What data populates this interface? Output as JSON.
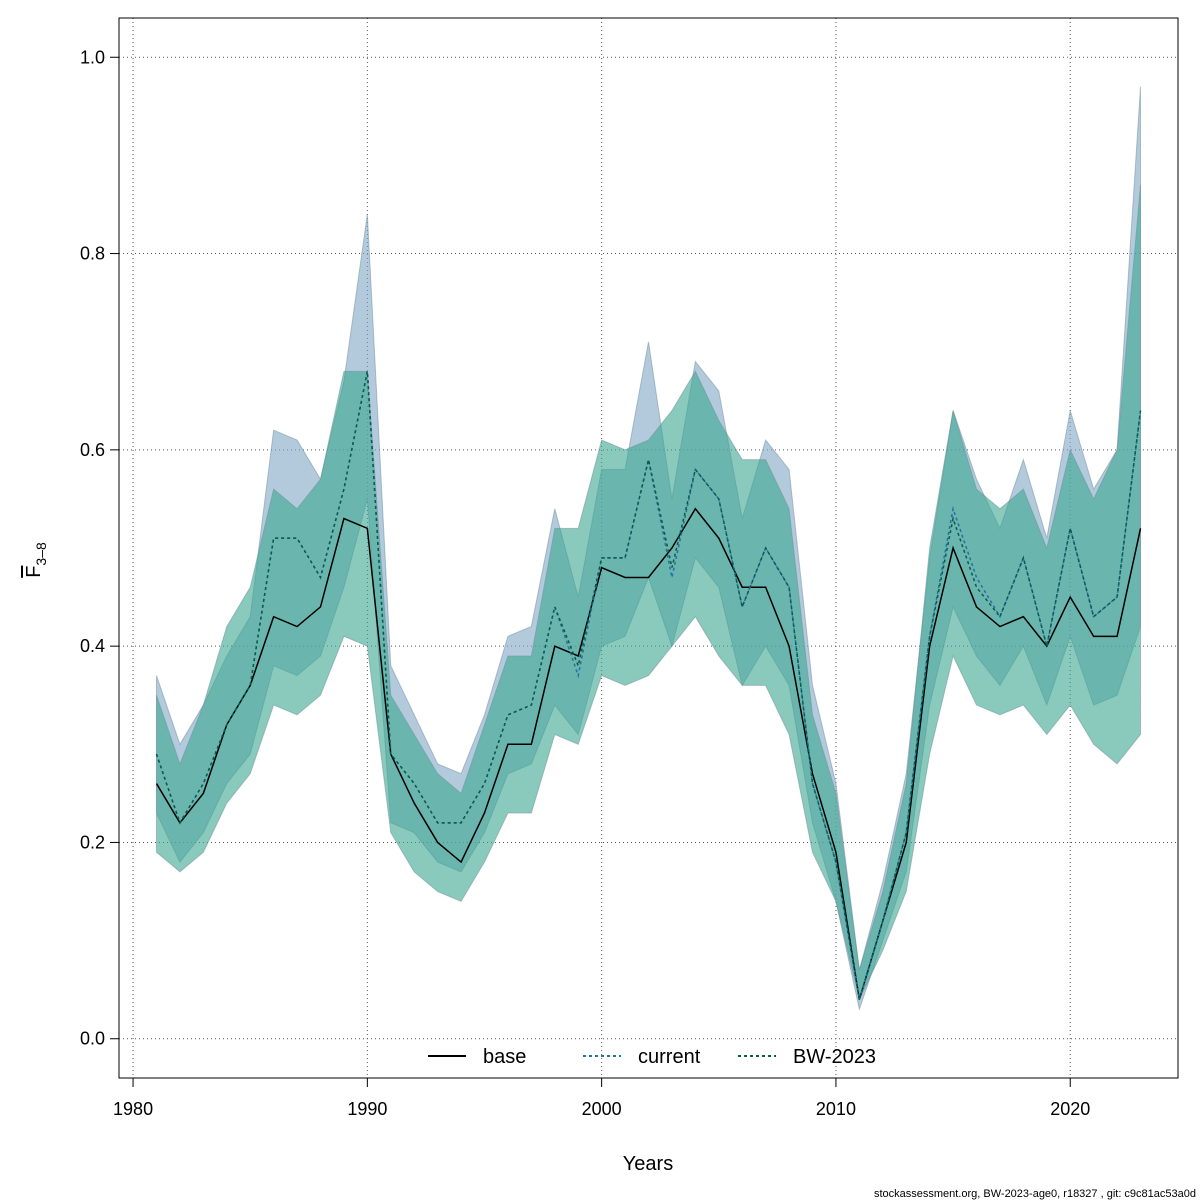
{
  "chart_data": {
    "type": "line",
    "xlabel": "Years",
    "ylabel": "F",
    "ylabel_subscript": "3–8",
    "xlim": [
      1979.4,
      2024.6
    ],
    "ylim": [
      -0.04,
      1.04
    ],
    "xticks": [
      1980,
      1990,
      2000,
      2010,
      2020
    ],
    "yticks": [
      0.0,
      0.2,
      0.4,
      0.6,
      0.8,
      1.0
    ],
    "grid": true,
    "legend_position": "bottom-center",
    "x": [
      1981,
      1982,
      1983,
      1984,
      1985,
      1986,
      1987,
      1988,
      1989,
      1990,
      1991,
      1992,
      1993,
      1994,
      1995,
      1996,
      1997,
      1998,
      1999,
      2000,
      2001,
      2002,
      2003,
      2004,
      2005,
      2006,
      2007,
      2008,
      2009,
      2010,
      2011,
      2012,
      2013,
      2014,
      2015,
      2016,
      2017,
      2018,
      2019,
      2020,
      2021,
      2022,
      2023
    ],
    "bands": [
      {
        "color": "#7fa6c4",
        "lower": [
          0.23,
          0.18,
          0.21,
          0.26,
          0.29,
          0.38,
          0.37,
          0.39,
          0.46,
          0.55,
          0.22,
          0.21,
          0.18,
          0.17,
          0.21,
          0.27,
          0.28,
          0.34,
          0.31,
          0.4,
          0.41,
          0.47,
          0.4,
          0.49,
          0.46,
          0.36,
          0.4,
          0.36,
          0.22,
          0.14,
          0.03,
          0.1,
          0.17,
          0.34,
          0.44,
          0.39,
          0.36,
          0.4,
          0.34,
          0.41,
          0.34,
          0.35,
          0.42
        ],
        "upper": [
          0.37,
          0.3,
          0.34,
          0.39,
          0.43,
          0.62,
          0.61,
          0.57,
          0.67,
          0.84,
          0.38,
          0.33,
          0.28,
          0.27,
          0.33,
          0.41,
          0.42,
          0.54,
          0.45,
          0.58,
          0.58,
          0.71,
          0.55,
          0.69,
          0.66,
          0.53,
          0.61,
          0.58,
          0.36,
          0.26,
          0.07,
          0.16,
          0.27,
          0.49,
          0.64,
          0.57,
          0.52,
          0.59,
          0.51,
          0.64,
          0.56,
          0.6,
          0.97
        ]
      },
      {
        "color": "#3aa68f",
        "lower": [
          0.19,
          0.17,
          0.19,
          0.24,
          0.27,
          0.34,
          0.33,
          0.35,
          0.41,
          0.4,
          0.21,
          0.17,
          0.15,
          0.14,
          0.18,
          0.23,
          0.23,
          0.31,
          0.3,
          0.37,
          0.36,
          0.37,
          0.4,
          0.43,
          0.39,
          0.36,
          0.36,
          0.31,
          0.19,
          0.14,
          0.04,
          0.09,
          0.15,
          0.29,
          0.39,
          0.34,
          0.33,
          0.34,
          0.31,
          0.34,
          0.3,
          0.28,
          0.31
        ],
        "upper": [
          0.35,
          0.28,
          0.34,
          0.42,
          0.46,
          0.56,
          0.54,
          0.57,
          0.68,
          0.68,
          0.35,
          0.31,
          0.27,
          0.25,
          0.32,
          0.39,
          0.39,
          0.52,
          0.52,
          0.61,
          0.6,
          0.61,
          0.64,
          0.68,
          0.63,
          0.59,
          0.59,
          0.54,
          0.33,
          0.25,
          0.07,
          0.15,
          0.26,
          0.5,
          0.64,
          0.56,
          0.54,
          0.56,
          0.5,
          0.6,
          0.55,
          0.6,
          0.87
        ]
      }
    ],
    "series": [
      {
        "name": "base",
        "color": "#000000",
        "dash": "solid",
        "values": [
          0.26,
          0.22,
          0.25,
          0.32,
          0.36,
          0.43,
          0.42,
          0.44,
          0.53,
          0.52,
          0.29,
          0.24,
          0.2,
          0.18,
          0.23,
          0.3,
          0.3,
          0.4,
          0.39,
          0.48,
          0.47,
          0.47,
          0.5,
          0.54,
          0.51,
          0.46,
          0.46,
          0.4,
          0.27,
          0.19,
          0.04,
          0.12,
          0.2,
          0.4,
          0.5,
          0.44,
          0.42,
          0.43,
          0.4,
          0.45,
          0.41,
          0.41,
          0.52
        ]
      },
      {
        "name": "current",
        "color": "#2471a3",
        "dash": "dotted",
        "values": [
          0.29,
          0.22,
          0.26,
          0.32,
          0.36,
          0.51,
          0.51,
          0.47,
          0.56,
          0.68,
          0.29,
          0.26,
          0.22,
          0.22,
          0.26,
          0.33,
          0.34,
          0.44,
          0.37,
          0.49,
          0.49,
          0.59,
          0.47,
          0.58,
          0.55,
          0.44,
          0.5,
          0.46,
          0.26,
          0.18,
          0.04,
          0.12,
          0.21,
          0.41,
          0.54,
          0.47,
          0.43,
          0.49,
          0.4,
          0.52,
          0.43,
          0.45,
          0.64
        ]
      },
      {
        "name": "BW-2023",
        "color": "#0b5a4a",
        "dash": "dotted",
        "values": [
          0.29,
          0.22,
          0.26,
          0.32,
          0.36,
          0.51,
          0.51,
          0.47,
          0.56,
          0.68,
          0.29,
          0.26,
          0.22,
          0.22,
          0.26,
          0.33,
          0.34,
          0.44,
          0.38,
          0.49,
          0.49,
          0.59,
          0.48,
          0.58,
          0.55,
          0.44,
          0.5,
          0.46,
          0.26,
          0.18,
          0.04,
          0.12,
          0.21,
          0.41,
          0.53,
          0.46,
          0.43,
          0.49,
          0.4,
          0.52,
          0.43,
          0.45,
          0.64
        ]
      }
    ]
  },
  "footer_text": "stockassessment.org, BW-2023-age0, r18327 , git: c9c81ac53a0d"
}
